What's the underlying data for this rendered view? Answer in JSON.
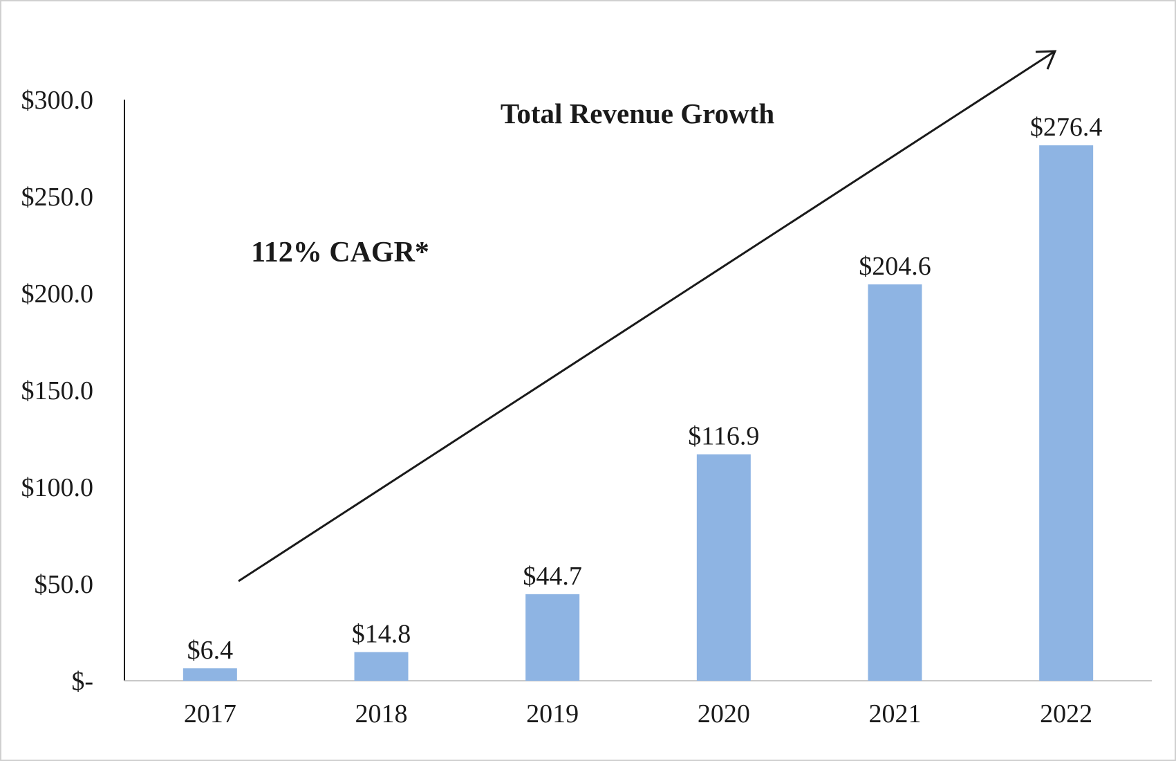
{
  "chart_data": {
    "type": "bar",
    "title": "Total Revenue Growth",
    "annotation": "112% CAGR*",
    "categories": [
      "2017",
      "2018",
      "2019",
      "2020",
      "2021",
      "2022"
    ],
    "values": [
      6.4,
      14.8,
      44.7,
      116.9,
      204.6,
      276.4
    ],
    "data_labels": [
      "$6.4",
      "$14.8",
      "$44.7",
      "$116.9",
      "$204.6",
      "$276.4"
    ],
    "y_ticks": [
      0,
      50,
      100,
      150,
      200,
      250,
      300
    ],
    "y_tick_labels": [
      "$-",
      "$50.0",
      "$100.0",
      "$150.0",
      "$200.0",
      "$250.0",
      "$300.0"
    ],
    "ylim": [
      0,
      300
    ],
    "xlabel": "",
    "ylabel": "",
    "grid": false,
    "legend": "none",
    "bar_color": "#8EB4E3",
    "trend_arrow": true
  }
}
